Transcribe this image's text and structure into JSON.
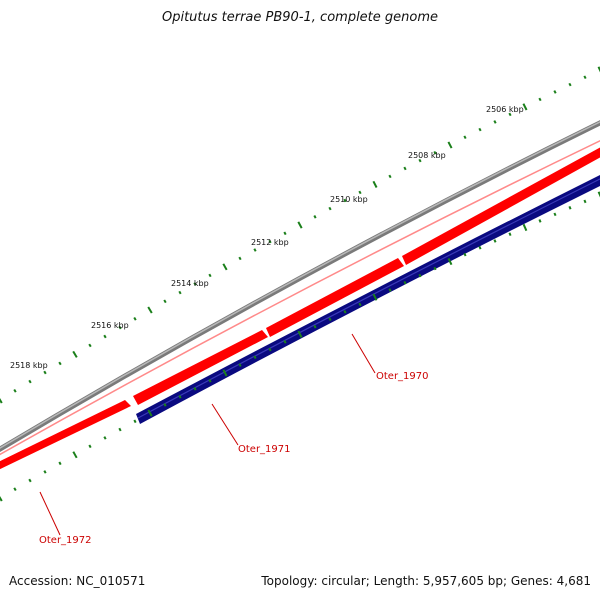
{
  "title": "Opitutus terrae PB90-1, complete genome",
  "accession_text": "Accession: NC_010571",
  "summary_text": "Topology: circular; Length: 5,957,605 bp; Genes: 4,681",
  "colors": {
    "backbone": "#808080",
    "forward_gene": "#ff0000",
    "reverse_gene": "#0a0a80",
    "ticks": "#1a7f1a",
    "gene_label": "#cc0000",
    "text": "#111111"
  },
  "scale": {
    "unit": "kbp",
    "labels": [
      "2506 kbp",
      "2508 kbp",
      "2510 kbp",
      "2512 kbp",
      "2514 kbp",
      "2516 kbp",
      "2518 kbp"
    ]
  },
  "genes": [
    {
      "locus": "Oter_1970",
      "strand": "forward"
    },
    {
      "locus": "Oter_1971",
      "strand": "forward"
    },
    {
      "locus": "Oter_1972",
      "strand": "forward"
    }
  ]
}
